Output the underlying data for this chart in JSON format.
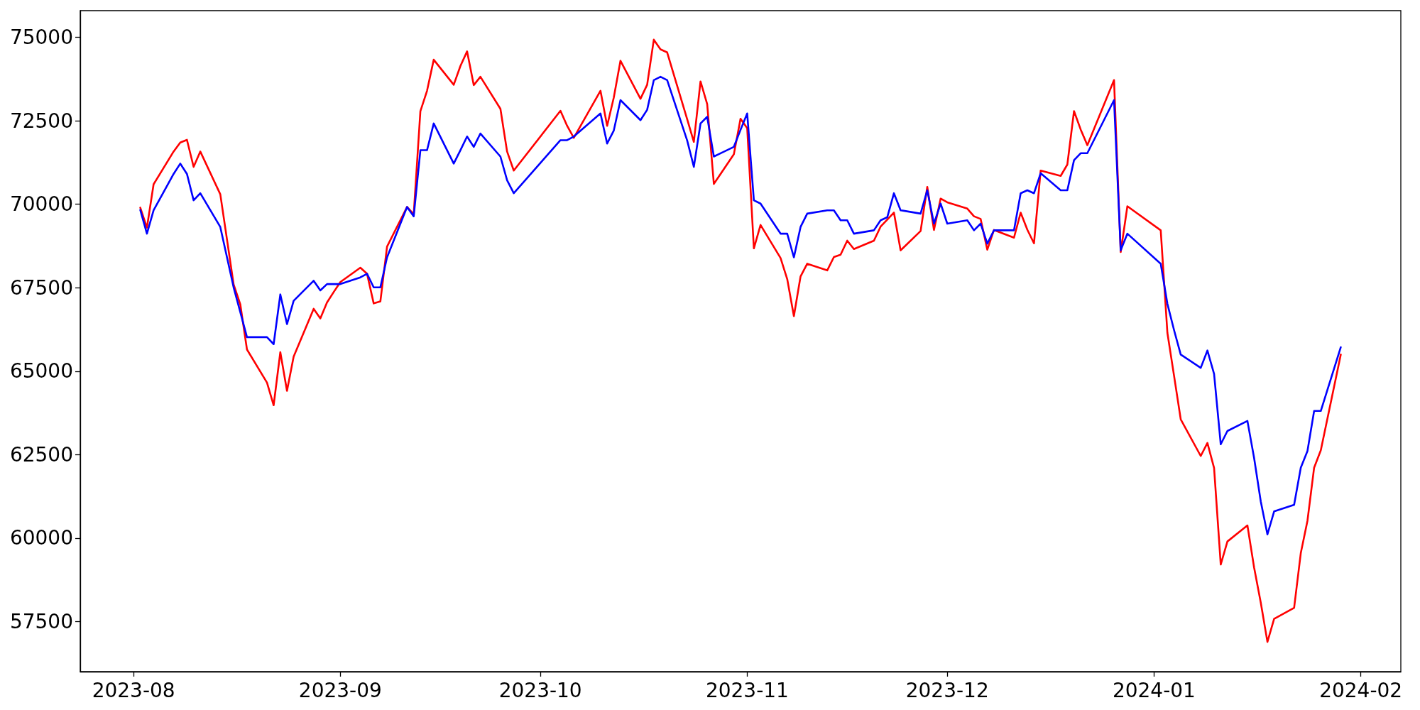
{
  "chart_data": {
    "type": "line",
    "x": [
      "2023-08-02",
      "2023-08-03",
      "2023-08-04",
      "2023-08-07",
      "2023-08-08",
      "2023-08-09",
      "2023-08-10",
      "2023-08-11",
      "2023-08-14",
      "2023-08-16",
      "2023-08-17",
      "2023-08-18",
      "2023-08-21",
      "2023-08-22",
      "2023-08-23",
      "2023-08-24",
      "2023-08-25",
      "2023-08-28",
      "2023-08-29",
      "2023-08-30",
      "2023-08-31",
      "2023-09-01",
      "2023-09-04",
      "2023-09-05",
      "2023-09-06",
      "2023-09-07",
      "2023-09-08",
      "2023-09-11",
      "2023-09-12",
      "2023-09-13",
      "2023-09-14",
      "2023-09-15",
      "2023-09-18",
      "2023-09-19",
      "2023-09-20",
      "2023-09-21",
      "2023-09-22",
      "2023-09-25",
      "2023-09-26",
      "2023-09-27",
      "2023-10-04",
      "2023-10-05",
      "2023-10-06",
      "2023-10-10",
      "2023-10-11",
      "2023-10-12",
      "2023-10-13",
      "2023-10-16",
      "2023-10-17",
      "2023-10-18",
      "2023-10-19",
      "2023-10-20",
      "2023-10-23",
      "2023-10-24",
      "2023-10-25",
      "2023-10-26",
      "2023-10-27",
      "2023-10-30",
      "2023-10-31",
      "2023-11-01",
      "2023-11-02",
      "2023-11-03",
      "2023-11-06",
      "2023-11-07",
      "2023-11-08",
      "2023-11-09",
      "2023-11-10",
      "2023-11-13",
      "2023-11-14",
      "2023-11-15",
      "2023-11-16",
      "2023-11-17",
      "2023-11-20",
      "2023-11-21",
      "2023-11-22",
      "2023-11-23",
      "2023-11-24",
      "2023-11-27",
      "2023-11-28",
      "2023-11-29",
      "2023-11-30",
      "2023-12-01",
      "2023-12-04",
      "2023-12-05",
      "2023-12-06",
      "2023-12-07",
      "2023-12-08",
      "2023-12-11",
      "2023-12-12",
      "2023-12-13",
      "2023-12-14",
      "2023-12-15",
      "2023-12-18",
      "2023-12-19",
      "2023-12-20",
      "2023-12-21",
      "2023-12-22",
      "2023-12-26",
      "2023-12-27",
      "2023-12-28",
      "2024-01-02",
      "2024-01-03",
      "2024-01-04",
      "2024-01-05",
      "2024-01-08",
      "2024-01-09",
      "2024-01-10",
      "2024-01-11",
      "2024-01-12",
      "2024-01-15",
      "2024-01-16",
      "2024-01-17",
      "2024-01-18",
      "2024-01-19",
      "2024-01-22",
      "2024-01-23",
      "2024-01-24",
      "2024-01-25",
      "2024-01-26",
      "2024-01-29"
    ],
    "series": [
      {
        "color": "#ff0000",
        "values": [
          69900,
          69300,
          70600,
          71580,
          71850,
          71930,
          71120,
          71580,
          70300,
          67600,
          67000,
          65650,
          64660,
          63980,
          65570,
          64410,
          65440,
          66870,
          66580,
          67060,
          67370,
          67670,
          68100,
          67920,
          67030,
          67090,
          68730,
          69920,
          69700,
          72790,
          73400,
          74330,
          73580,
          74140,
          74580,
          73570,
          73820,
          72860,
          71580,
          71010,
          72800,
          72350,
          71990,
          73400,
          72350,
          73200,
          74300,
          73160,
          73580,
          74930,
          74640,
          74550,
          72550,
          71870,
          73680,
          73000,
          70610,
          71500,
          72560,
          72280,
          68680,
          69380,
          68390,
          67760,
          66650,
          67840,
          68220,
          68020,
          68420,
          68490,
          68910,
          68660,
          68910,
          69330,
          69540,
          69750,
          68620,
          69200,
          70520,
          69230,
          70170,
          70060,
          69870,
          69640,
          69560,
          68640,
          69230,
          69000,
          69750,
          69240,
          68830,
          71010,
          70850,
          71190,
          72790,
          72240,
          71770,
          73720,
          68570,
          69940,
          69220,
          66150,
          64860,
          63560,
          62460,
          62850,
          62100,
          59210,
          59900,
          60380,
          59120,
          58070,
          56890,
          57580,
          57910,
          59550,
          60520,
          62110,
          62630,
          65500
        ]
      },
      {
        "color": "#0000ff",
        "values": [
          69830,
          69120,
          69820,
          70910,
          71220,
          70910,
          70120,
          70330,
          69320,
          67510,
          66770,
          66020,
          66020,
          65810,
          67300,
          66410,
          67110,
          67710,
          67420,
          67610,
          67610,
          67610,
          67810,
          67920,
          67510,
          67510,
          68410,
          69920,
          69640,
          71620,
          71620,
          72420,
          71220,
          71620,
          72030,
          71720,
          72120,
          71430,
          70720,
          70330,
          71920,
          71920,
          72030,
          72720,
          71820,
          72210,
          73120,
          72520,
          72830,
          73720,
          73820,
          73720,
          71910,
          71120,
          72420,
          72620,
          71430,
          71720,
          72230,
          72720,
          70120,
          70020,
          69120,
          69120,
          68410,
          69320,
          69720,
          69820,
          69820,
          69520,
          69520,
          69120,
          69220,
          69520,
          69610,
          70330,
          69820,
          69720,
          70420,
          69420,
          70020,
          69420,
          69520,
          69220,
          69420,
          68820,
          69220,
          69220,
          70330,
          70420,
          70330,
          70930,
          70420,
          70420,
          71320,
          71530,
          71530,
          73120,
          68620,
          69120,
          68220,
          67020,
          66230,
          65500,
          65100,
          65620,
          64920,
          62810,
          63210,
          63510,
          62400,
          61100,
          60110,
          60800,
          61000,
          62110,
          62610,
          63810,
          63810,
          65720
        ]
      }
    ],
    "xlim": [
      "2023-07-24",
      "2024-02-07"
    ],
    "xticks": [
      {
        "value": "2023-08",
        "label": "2023-08"
      },
      {
        "value": "2023-09",
        "label": "2023-09"
      },
      {
        "value": "2023-10",
        "label": "2023-10"
      },
      {
        "value": "2023-11",
        "label": "2023-11"
      },
      {
        "value": "2023-12",
        "label": "2023-12"
      },
      {
        "value": "2024-01",
        "label": "2024-01"
      },
      {
        "value": "2024-02",
        "label": "2024-02"
      }
    ],
    "ylim": [
      56000,
      75800
    ],
    "yticks": [
      57500,
      60000,
      62500,
      65000,
      67500,
      70000,
      72500,
      75000
    ],
    "marker": "none",
    "line_style": "solid"
  }
}
